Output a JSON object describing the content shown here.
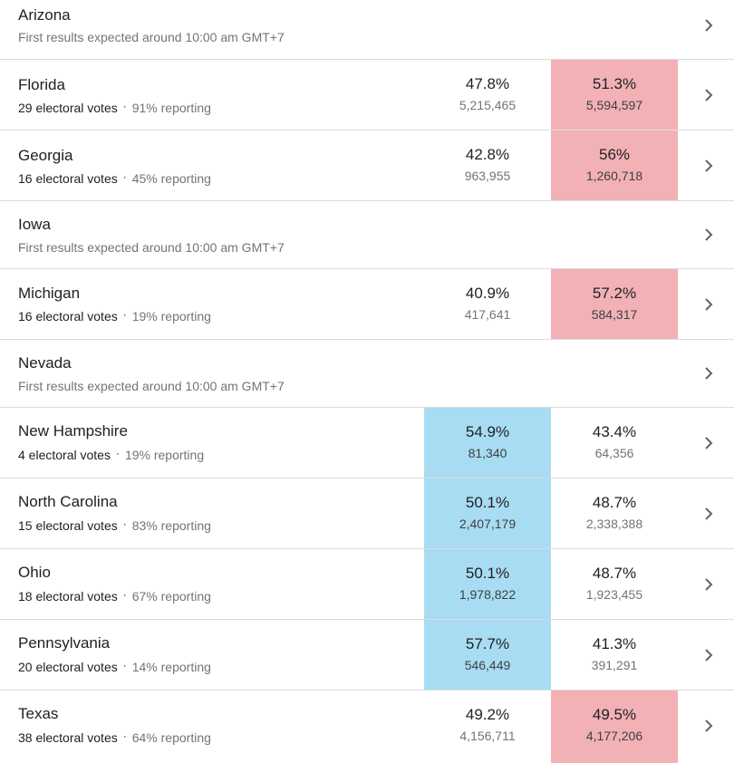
{
  "states": [
    {
      "name": "Arizona",
      "status": "First results expected around 10:00 am GMT+7"
    },
    {
      "name": "Florida",
      "electoral_votes": "29 electoral votes",
      "reporting": "91% reporting",
      "dem": {
        "pct": "47.8%",
        "votes": "5,215,465"
      },
      "rep": {
        "pct": "51.3%",
        "votes": "5,594,597"
      },
      "leader": "rep"
    },
    {
      "name": "Georgia",
      "electoral_votes": "16 electoral votes",
      "reporting": "45% reporting",
      "dem": {
        "pct": "42.8%",
        "votes": "963,955"
      },
      "rep": {
        "pct": "56%",
        "votes": "1,260,718"
      },
      "leader": "rep"
    },
    {
      "name": "Iowa",
      "status": "First results expected around 10:00 am GMT+7"
    },
    {
      "name": "Michigan",
      "electoral_votes": "16 electoral votes",
      "reporting": "19% reporting",
      "dem": {
        "pct": "40.9%",
        "votes": "417,641"
      },
      "rep": {
        "pct": "57.2%",
        "votes": "584,317"
      },
      "leader": "rep"
    },
    {
      "name": "Nevada",
      "status": "First results expected around 10:00 am GMT+7"
    },
    {
      "name": "New Hampshire",
      "electoral_votes": "4 electoral votes",
      "reporting": "19% reporting",
      "dem": {
        "pct": "54.9%",
        "votes": "81,340"
      },
      "rep": {
        "pct": "43.4%",
        "votes": "64,356"
      },
      "leader": "dem"
    },
    {
      "name": "North Carolina",
      "electoral_votes": "15 electoral votes",
      "reporting": "83% reporting",
      "dem": {
        "pct": "50.1%",
        "votes": "2,407,179"
      },
      "rep": {
        "pct": "48.7%",
        "votes": "2,338,388"
      },
      "leader": "dem"
    },
    {
      "name": "Ohio",
      "electoral_votes": "18 electoral votes",
      "reporting": "67% reporting",
      "dem": {
        "pct": "50.1%",
        "votes": "1,978,822"
      },
      "rep": {
        "pct": "48.7%",
        "votes": "1,923,455"
      },
      "leader": "dem"
    },
    {
      "name": "Pennsylvania",
      "electoral_votes": "20 electoral votes",
      "reporting": "14% reporting",
      "dem": {
        "pct": "57.7%",
        "votes": "546,449"
      },
      "rep": {
        "pct": "41.3%",
        "votes": "391,291"
      },
      "leader": "dem"
    },
    {
      "name": "Texas",
      "electoral_votes": "38 electoral votes",
      "reporting": "64% reporting",
      "dem": {
        "pct": "49.2%",
        "votes": "4,156,711"
      },
      "rep": {
        "pct": "49.5%",
        "votes": "4,177,206"
      },
      "leader": "rep"
    }
  ],
  "colors": {
    "dem_lead": "#a8dcf2",
    "rep_lead": "#f2b1b5",
    "divider": "#dadce0",
    "chevron": "#5f6368"
  },
  "icons": {
    "row_action": "chevron-right-icon"
  },
  "separator": "·"
}
